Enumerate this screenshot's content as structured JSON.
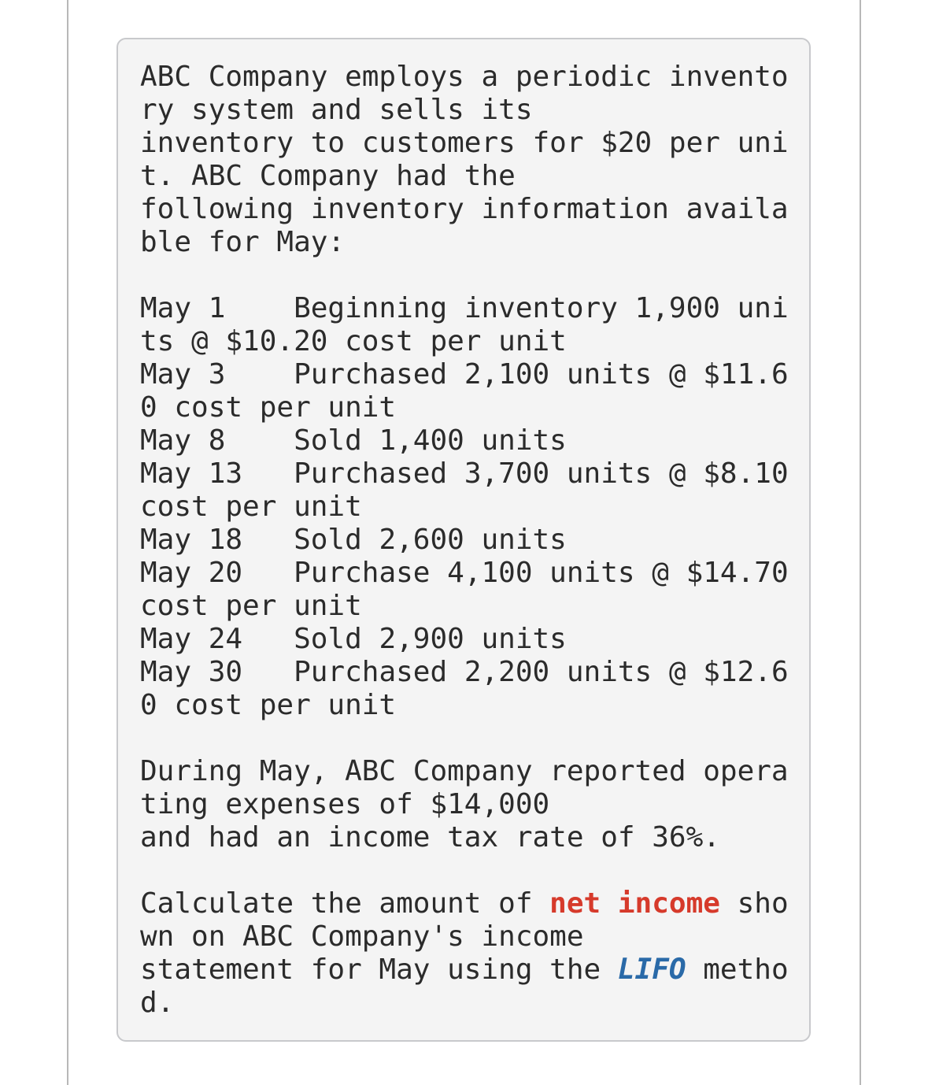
{
  "intro": "ABC Company employs a periodic inventory system and sells its\ninventory to customers for $20 per unit. ABC Company had the\nfollowing inventory information available for May:",
  "entries": [
    {
      "date": "May 1",
      "text": "Beginning inventory 1,900 units @ $10.20 cost per unit"
    },
    {
      "date": "May 3",
      "text": "Purchased 2,100 units @ $11.60 cost per unit"
    },
    {
      "date": "May 8",
      "text": "Sold 1,400 units"
    },
    {
      "date": "May 13",
      "text": "Purchased 3,700 units @ $8.10 cost per unit"
    },
    {
      "date": "May 18",
      "text": "Sold 2,600 units"
    },
    {
      "date": "May 20",
      "text": "Purchase 4,100 units @ $14.70 cost per unit"
    },
    {
      "date": "May 24",
      "text": "Sold 2,900 units"
    },
    {
      "date": "May 30",
      "text": "Purchased 2,200 units @ $12.60 cost per unit"
    }
  ],
  "expenses": "During May, ABC Company reported operating expenses of $14,000\nand had an income tax rate of 36%.",
  "question": [
    "Calculate the amount of ",
    "net income",
    " shown on ABC Company's income\nstatement for May using the ",
    "LIFO",
    " method."
  ]
}
